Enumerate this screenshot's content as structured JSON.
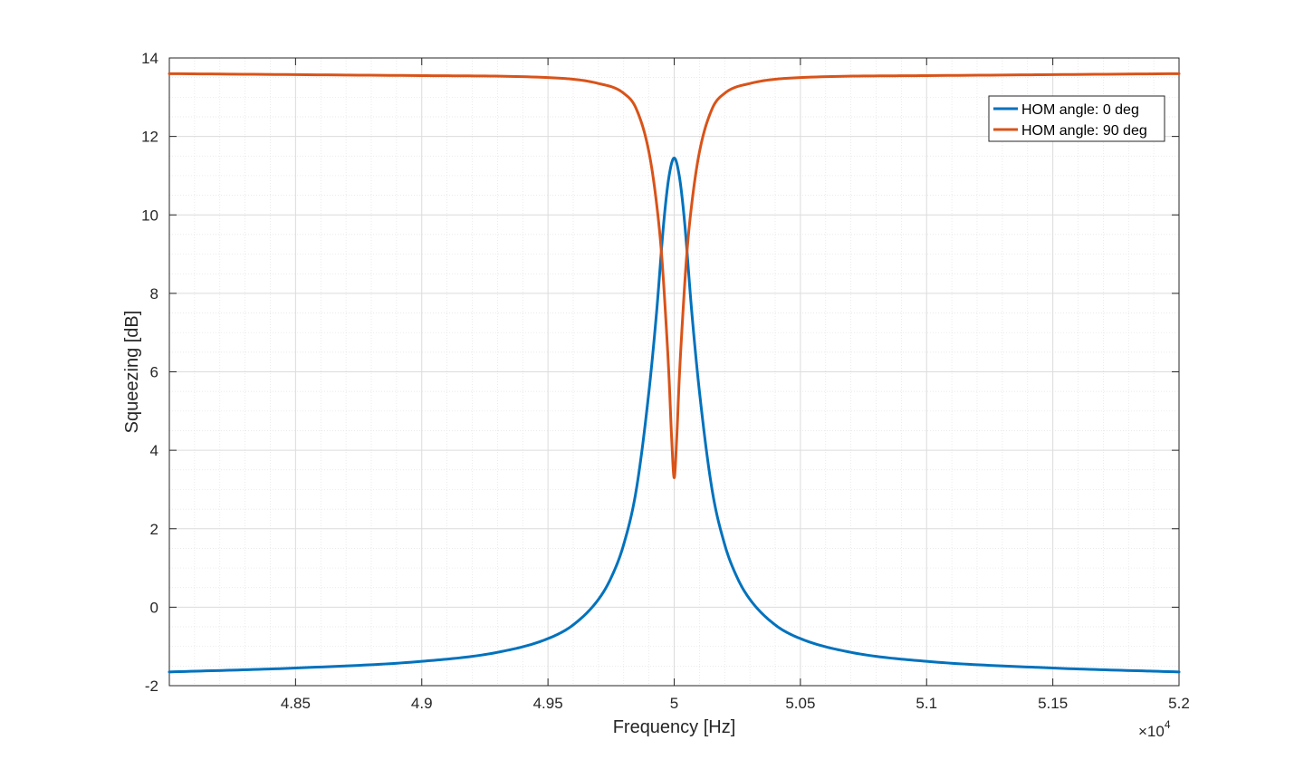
{
  "chart_data": {
    "type": "line",
    "xlabel": "Frequency [Hz]",
    "ylabel": "Squeezing [dB]",
    "x_multiplier": "×10",
    "x_multiplier_exponent": "4",
    "xlim": [
      4.8,
      5.2
    ],
    "ylim": [
      -2,
      14
    ],
    "xticks": [
      4.85,
      4.9,
      4.95,
      5,
      5.05,
      5.1,
      5.15,
      5.2
    ],
    "xtick_labels": [
      "4.85",
      "4.9",
      "4.95",
      "5",
      "5.05",
      "5.1",
      "5.15",
      "5.2"
    ],
    "yticks": [
      -2,
      0,
      2,
      4,
      6,
      8,
      10,
      12,
      14
    ],
    "ytick_labels": [
      "-2",
      "0",
      "2",
      "4",
      "6",
      "8",
      "10",
      "12",
      "14"
    ],
    "grid": true,
    "minor_grid": true,
    "legend_position": "top-right",
    "series": [
      {
        "name": "HOM angle: 0 deg",
        "color": "#0072BD",
        "x": [
          4.8,
          4.85,
          4.9,
          4.93,
          4.95,
          4.96,
          4.97,
          4.975,
          4.98,
          4.985,
          4.99,
          4.993,
          4.996,
          4.998,
          5.0,
          5.002,
          5.004,
          5.007,
          5.01,
          5.015,
          5.02,
          5.025,
          5.03,
          5.04,
          5.05,
          5.07,
          5.1,
          5.15,
          5.2
        ],
        "y": [
          -1.65,
          -1.55,
          -1.38,
          -1.15,
          -0.8,
          -0.45,
          0.2,
          0.75,
          1.6,
          3.0,
          5.5,
          7.5,
          9.9,
          11.0,
          11.45,
          11.0,
          9.9,
          7.5,
          5.5,
          3.0,
          1.6,
          0.75,
          0.2,
          -0.45,
          -0.8,
          -1.15,
          -1.38,
          -1.55,
          -1.65
        ]
      },
      {
        "name": "HOM angle: 90 deg",
        "color": "#D95319",
        "x": [
          4.8,
          4.9,
          4.95,
          4.97,
          4.98,
          4.985,
          4.99,
          4.993,
          4.995,
          4.997,
          4.998,
          4.999,
          5.0,
          5.001,
          5.002,
          5.003,
          5.005,
          5.007,
          5.01,
          5.015,
          5.02,
          5.03,
          5.05,
          5.1,
          5.2
        ],
        "y": [
          13.6,
          13.55,
          13.5,
          13.35,
          13.1,
          12.7,
          11.6,
          10.3,
          9.0,
          7.0,
          5.8,
          4.3,
          3.3,
          4.3,
          5.8,
          7.0,
          9.0,
          10.3,
          11.6,
          12.7,
          13.1,
          13.35,
          13.5,
          13.55,
          13.6
        ]
      }
    ]
  }
}
